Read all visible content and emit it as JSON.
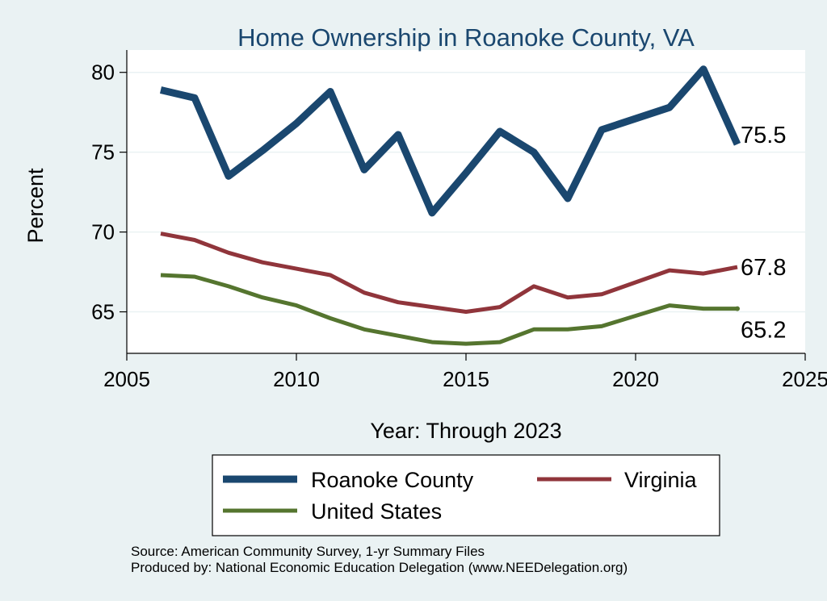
{
  "chart_data": {
    "type": "line",
    "title": "Home Ownership in Roanoke County, VA",
    "xlabel": "Year: Through 2023",
    "ylabel": "Percent",
    "xlim": [
      2005,
      2025
    ],
    "ylim": [
      62.4,
      81.4
    ],
    "x_ticks": [
      "2005",
      "2010",
      "2015",
      "2020",
      "2025"
    ],
    "y_ticks": [
      "65",
      "70",
      "75",
      "80"
    ],
    "grid": true,
    "legend_position": "bottom",
    "x": [
      2006,
      2007,
      2008,
      2009,
      2010,
      2011,
      2012,
      2013,
      2014,
      2015,
      2016,
      2017,
      2018,
      2019,
      2021,
      2022,
      2023
    ],
    "series": [
      {
        "name": "Roanoke County",
        "color": "#1a476f",
        "values": [
          78.9,
          78.4,
          73.5,
          75.1,
          76.8,
          78.8,
          73.9,
          76.1,
          71.2,
          73.7,
          76.3,
          75.0,
          72.1,
          76.4,
          77.8,
          80.2,
          75.5
        ],
        "end_label": "75.5"
      },
      {
        "name": "Virginia",
        "color": "#90353b",
        "values": [
          69.9,
          69.5,
          68.7,
          68.1,
          67.7,
          67.3,
          66.2,
          65.6,
          65.3,
          65.0,
          65.3,
          66.6,
          65.9,
          66.1,
          67.6,
          67.4,
          67.8
        ],
        "end_label": "67.8"
      },
      {
        "name": "United States",
        "color": "#55752f",
        "values": [
          67.3,
          67.2,
          66.6,
          65.9,
          65.4,
          64.6,
          63.9,
          63.5,
          63.1,
          63.0,
          63.1,
          63.9,
          63.9,
          64.1,
          65.4,
          65.2,
          65.2
        ],
        "end_label": "65.2"
      }
    ]
  },
  "source_line": "Source: American Community Survey, 1-yr Summary Files",
  "producer_line": "Produced by: National Economic Education Delegation (www.NEEDelegation.org)"
}
